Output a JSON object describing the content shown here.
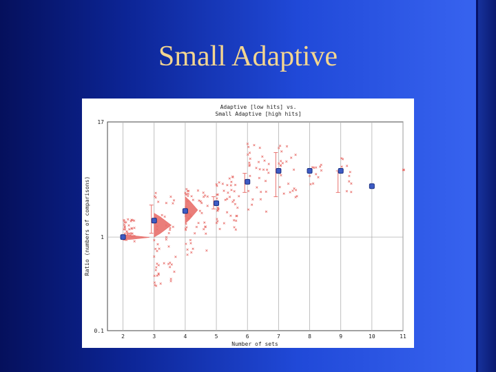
{
  "slide": {
    "title": "Small Adaptive"
  },
  "chart_data": {
    "type": "scatter",
    "title_lines": [
      "Adaptive [low hits] vs.",
      "Small Adaptive [high hits]"
    ],
    "xlabel": "Number of sets",
    "ylabel": "Ratio (numbers of comparisons)",
    "x_ticks": [
      2,
      3,
      4,
      5,
      6,
      7,
      8,
      9,
      10,
      11
    ],
    "y_ticks": [
      {
        "value": 0.1,
        "label": "0.1"
      },
      {
        "value": 1,
        "label": "1"
      },
      {
        "value": 17,
        "label": "17"
      }
    ],
    "xlim": [
      1.5,
      11
    ],
    "ylim": [
      0.1,
      17
    ],
    "y_scale": "log",
    "grid": true,
    "colors": {
      "points": "#e8706c",
      "means": "#3d5bc4",
      "mean_outline": "#1a2f80",
      "grid": "#b0b0b0"
    },
    "means": [
      {
        "x": 2,
        "y": 1.0
      },
      {
        "x": 3,
        "y": 1.5
      },
      {
        "x": 4,
        "y": 1.9
      },
      {
        "x": 5,
        "y": 2.3
      },
      {
        "x": 6,
        "y": 3.9
      },
      {
        "x": 7,
        "y": 5.1
      },
      {
        "x": 8,
        "y": 5.1
      },
      {
        "x": 9,
        "y": 5.1
      },
      {
        "x": 10,
        "y": 3.5
      }
    ],
    "error_bars": [
      {
        "x": 3,
        "low": 1.1,
        "high": 2.2
      },
      {
        "x": 5,
        "low": 2.0,
        "high": 2.7
      },
      {
        "x": 6,
        "low": 3.0,
        "high": 4.8
      },
      {
        "x": 7,
        "low": 2.7,
        "high": 8.0
      },
      {
        "x": 9,
        "low": 3.0,
        "high": 5.1
      }
    ],
    "point_bands": [
      {
        "x": 2,
        "ymin": 0.9,
        "ymax": 1.6,
        "n": 34,
        "spread": 0.4
      },
      {
        "x": 3,
        "ymin": 0.3,
        "ymax": 3.0,
        "n": 50,
        "spread": 0.7
      },
      {
        "x": 4,
        "ymin": 0.6,
        "ymax": 3.4,
        "n": 48,
        "spread": 0.75
      },
      {
        "x": 5,
        "ymin": 1.2,
        "ymax": 4.6,
        "n": 44,
        "spread": 0.75
      },
      {
        "x": 6,
        "ymin": 1.8,
        "ymax": 10.0,
        "n": 32,
        "spread": 0.7
      },
      {
        "x": 7,
        "ymin": 2.6,
        "ymax": 9.5,
        "n": 24,
        "spread": 0.6
      },
      {
        "x": 8,
        "ymin": 3.5,
        "ymax": 6.0,
        "n": 12,
        "spread": 0.5
      },
      {
        "x": 9,
        "ymin": 3.0,
        "ymax": 7.5,
        "n": 10,
        "spread": 0.35
      },
      {
        "x": 11,
        "ymin": 5.0,
        "ymax": 5.6,
        "n": 3,
        "spread": 0.1
      }
    ],
    "dense_clusters": [
      {
        "x": 2,
        "ymin": 0.93,
        "ymax": 1.06,
        "spread": 0.85
      },
      {
        "x": 3,
        "ymin": 1.0,
        "ymax": 1.8,
        "spread": 0.55
      },
      {
        "x": 4,
        "ymin": 1.4,
        "ymax": 2.7,
        "spread": 0.4
      }
    ]
  }
}
